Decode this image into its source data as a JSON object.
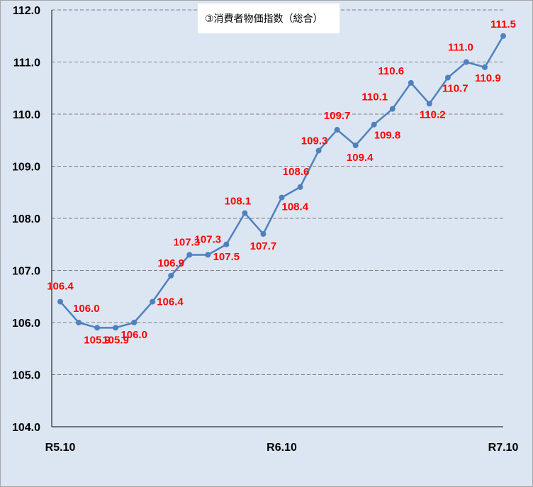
{
  "chart_data": {
    "type": "line",
    "title": "③消費者物価指数（総合）",
    "xlabel": "",
    "ylabel": "",
    "ylim": [
      104.0,
      112.0
    ],
    "yticks": [
      "104.0",
      "105.0",
      "106.0",
      "107.0",
      "108.0",
      "109.0",
      "110.0",
      "111.0",
      "112.0"
    ],
    "xtick_labels": [
      {
        "label": "R5.10",
        "index": 0
      },
      {
        "label": "R6.10",
        "index": 12
      },
      {
        "label": "R7.10",
        "index": 24
      }
    ],
    "grid": true,
    "line_color": "#4f81bd",
    "label_color": "#ff0000",
    "series": [
      {
        "values": [
          106.4,
          106.0,
          105.9,
          105.9,
          106.0,
          106.4,
          106.9,
          107.3,
          107.3,
          107.5,
          108.1,
          107.7,
          108.4,
          108.6,
          109.3,
          109.7,
          109.4,
          109.8,
          110.1,
          110.6,
          110.2,
          110.7,
          111.0,
          110.9,
          111.5
        ],
        "labels": [
          "106.4",
          "106.0",
          "105.9",
          "105.9",
          "106.0",
          "106.4",
          "106.9",
          "107.3",
          "107.3",
          "107.5",
          "108.1",
          "107.7",
          "108.4",
          "108.6",
          "109.3",
          "109.7",
          "109.4",
          "109.8",
          "110.1",
          "110.6",
          "110.2",
          "110.7",
          "111.0",
          "110.9",
          "111.5"
        ]
      }
    ]
  }
}
